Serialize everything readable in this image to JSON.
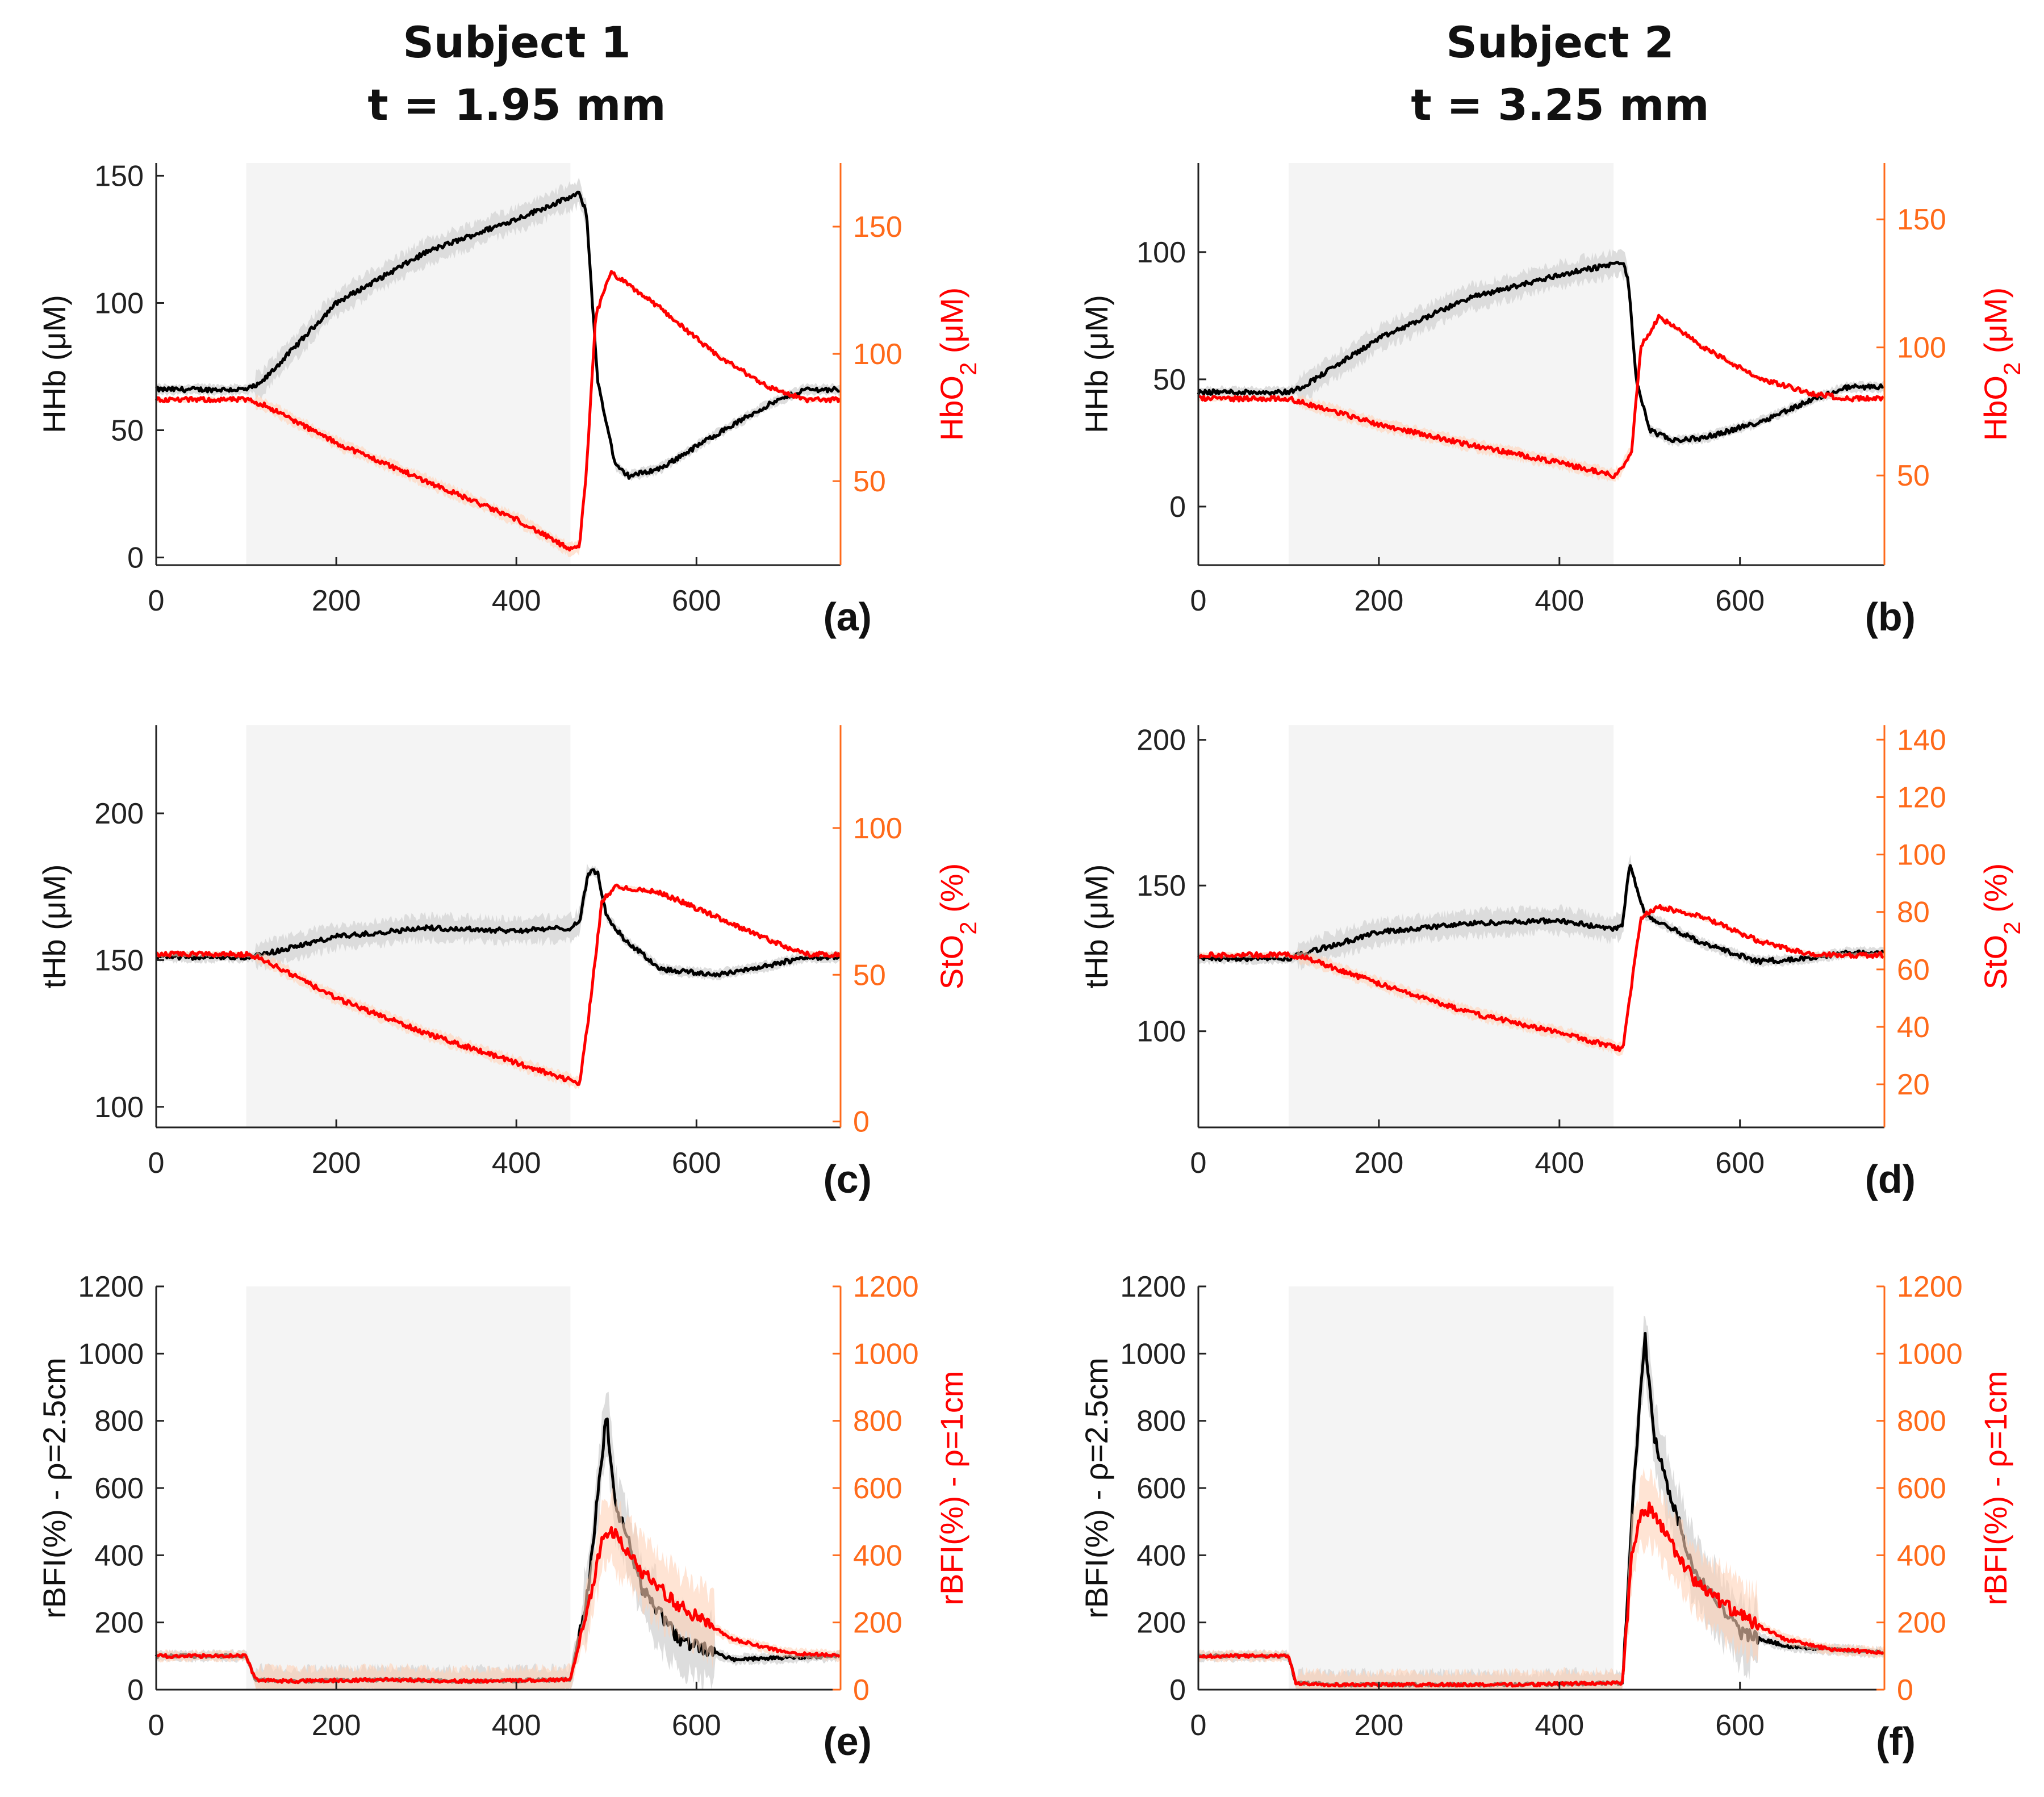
{
  "columns": [
    {
      "subject": "Subject 1",
      "thickness": "t = 1.95 mm"
    },
    {
      "subject": "Subject 2",
      "thickness": "t = 3.25 mm"
    }
  ],
  "colors": {
    "left_series": "#000000",
    "right_series": "#ff0000",
    "right_axis": "#ff6a1a",
    "band": "#d9d9d9",
    "occlusion_shade": "#f4f4f4"
  },
  "chart_data": [
    {
      "panel": "(a)",
      "type": "line",
      "subject": "Subject 1",
      "xlim": [
        0,
        760
      ],
      "xticks": [
        0,
        200,
        400,
        600
      ],
      "ylabel_left": "HHb (μM)",
      "ylabel_right": "HbO₂ (μM)",
      "ylim_left": [
        -3,
        155
      ],
      "yticks_left": [
        0,
        50,
        100,
        150
      ],
      "ylim_right": [
        17,
        175
      ],
      "yticks_right": [
        50,
        100,
        150
      ],
      "occlusion": [
        100,
        460
      ],
      "series": [
        {
          "name": "HHb",
          "axis": "left",
          "x": [
            0,
            100,
            115,
            200,
            300,
            400,
            470,
            478,
            490,
            510,
            525,
            560,
            620,
            680,
            720,
            760
          ],
          "y": [
            66,
            66,
            68,
            100,
            120,
            133,
            143,
            135,
            70,
            36,
            32,
            35,
            48,
            60,
            66,
            66
          ]
        },
        {
          "name": "HbO₂",
          "axis": "right",
          "x": [
            0,
            100,
            120,
            200,
            300,
            400,
            460,
            470,
            478,
            488,
            505,
            560,
            620,
            680,
            720,
            760
          ],
          "y": [
            82,
            82,
            80,
            65,
            50,
            35,
            23,
            24,
            55,
            115,
            132,
            118,
            100,
            87,
            82,
            82
          ]
        }
      ]
    },
    {
      "panel": "(b)",
      "type": "line",
      "subject": "Subject 2",
      "xlim": [
        0,
        760
      ],
      "xticks": [
        0,
        200,
        400,
        600
      ],
      "ylabel_left": "HHb (μM)",
      "ylabel_right": "HbO₂ (μM)",
      "ylim_left": [
        -23,
        135
      ],
      "yticks_left": [
        0,
        50,
        100
      ],
      "ylim_right": [
        15,
        172
      ],
      "yticks_right": [
        50,
        100,
        150
      ],
      "occlusion": [
        100,
        460
      ],
      "series": [
        {
          "name": "HHb",
          "axis": "left",
          "x": [
            0,
            100,
            115,
            200,
            300,
            400,
            470,
            476,
            485,
            500,
            525,
            560,
            620,
            680,
            720,
            760
          ],
          "y": [
            45,
            45,
            47,
            66,
            82,
            91,
            96,
            90,
            50,
            30,
            26,
            27,
            33,
            42,
            47,
            47
          ]
        },
        {
          "name": "HbO₂",
          "axis": "right",
          "x": [
            0,
            100,
            120,
            200,
            300,
            400,
            460,
            468,
            480,
            490,
            510,
            560,
            620,
            680,
            720,
            760
          ],
          "y": [
            80,
            80,
            78,
            70,
            62,
            55,
            50,
            52,
            60,
            100,
            112,
            100,
            88,
            82,
            80,
            80
          ]
        }
      ]
    },
    {
      "panel": "(c)",
      "type": "line",
      "subject": "Subject 1",
      "xlim": [
        0,
        760
      ],
      "xticks": [
        0,
        200,
        400,
        600
      ],
      "ylabel_left": "tHb (μM)",
      "ylabel_right": "StO₂ (%)",
      "ylim_left": [
        93,
        230
      ],
      "yticks_left": [
        100,
        150,
        200
      ],
      "ylim_right": [
        -2,
        135
      ],
      "yticks_right": [
        0,
        50,
        100
      ],
      "occlusion": [
        100,
        460
      ],
      "series": [
        {
          "name": "tHb",
          "axis": "left",
          "x": [
            0,
            100,
            120,
            200,
            300,
            400,
            460,
            470,
            480,
            490,
            500,
            520,
            560,
            620,
            680,
            720,
            760
          ],
          "y": [
            151,
            151,
            152,
            158,
            161,
            160,
            161,
            163,
            180,
            180,
            165,
            157,
            147,
            145,
            148,
            151,
            151
          ]
        },
        {
          "name": "StO₂",
          "axis": "right",
          "x": [
            0,
            100,
            120,
            200,
            300,
            400,
            460,
            470,
            480,
            495,
            510,
            560,
            620,
            680,
            720,
            760
          ],
          "y": [
            57,
            57,
            55,
            42,
            30,
            20,
            14,
            13,
            35,
            75,
            80,
            78,
            70,
            62,
            57,
            57
          ]
        }
      ]
    },
    {
      "panel": "(d)",
      "type": "line",
      "subject": "Subject 2",
      "xlim": [
        0,
        760
      ],
      "xticks": [
        0,
        200,
        400,
        600
      ],
      "ylabel_left": "tHb (μM)",
      "ylabel_right": "StO₂ (%)",
      "ylim_left": [
        67,
        205
      ],
      "yticks_left": [
        100,
        150,
        200
      ],
      "ylim_right": [
        5,
        145
      ],
      "yticks_right": [
        20,
        40,
        60,
        80,
        100,
        120,
        140
      ],
      "occlusion": [
        100,
        460
      ],
      "series": [
        {
          "name": "tHb",
          "axis": "left",
          "x": [
            0,
            100,
            120,
            200,
            300,
            400,
            460,
            470,
            478,
            485,
            495,
            520,
            560,
            620,
            680,
            720,
            760
          ],
          "y": [
            125,
            125,
            127,
            134,
            137,
            138,
            135,
            137,
            158,
            150,
            140,
            136,
            130,
            124,
            125,
            127,
            127
          ]
        },
        {
          "name": "StO₂",
          "axis": "right",
          "x": [
            0,
            100,
            120,
            200,
            300,
            400,
            460,
            470,
            478,
            490,
            510,
            560,
            620,
            680,
            720,
            760
          ],
          "y": [
            65,
            65,
            64,
            55,
            45,
            38,
            33,
            32,
            50,
            78,
            82,
            78,
            70,
            65,
            65,
            65
          ]
        }
      ]
    },
    {
      "panel": "(e)",
      "type": "line",
      "subject": "Subject 1",
      "xlim": [
        0,
        760
      ],
      "xticks": [
        0,
        200,
        400,
        600
      ],
      "ylabel_left": "rBFI(%) - ρ=2.5cm",
      "ylabel_right": "rBFI(%) - ρ=1cm",
      "ylim_left": [
        0,
        1200
      ],
      "yticks_left": [
        0,
        200,
        400,
        600,
        800,
        1000,
        1200
      ],
      "ylim_right": [
        0,
        1200
      ],
      "yticks_right": [
        0,
        200,
        400,
        600,
        800,
        1000,
        1200
      ],
      "occlusion": [
        100,
        460
      ],
      "series": [
        {
          "name": "rBFI ρ=2.5cm",
          "axis": "left",
          "x": [
            0,
            100,
            110,
            150,
            250,
            350,
            460,
            480,
            495,
            500,
            510,
            520,
            540,
            580,
            640,
            700,
            760
          ],
          "y": [
            100,
            100,
            30,
            25,
            30,
            25,
            30,
            300,
            700,
            820,
            550,
            480,
            300,
            150,
            90,
            95,
            100
          ]
        },
        {
          "name": "rBFI ρ=1cm",
          "axis": "right",
          "x": [
            0,
            100,
            110,
            150,
            250,
            350,
            460,
            480,
            495,
            505,
            520,
            540,
            580,
            640,
            700,
            760
          ],
          "y": [
            100,
            100,
            30,
            25,
            30,
            25,
            30,
            250,
            450,
            480,
            420,
            350,
            250,
            150,
            110,
            100
          ]
        }
      ]
    },
    {
      "panel": "(f)",
      "type": "line",
      "subject": "Subject 2",
      "xlim": [
        0,
        760
      ],
      "xticks": [
        0,
        200,
        400,
        600
      ],
      "ylabel_left": "rBFI(%) - ρ=2.5cm",
      "ylabel_right": "rBFI(%) - ρ=1cm",
      "ylim_left": [
        0,
        1200
      ],
      "yticks_left": [
        0,
        200,
        400,
        600,
        800,
        1000,
        1200
      ],
      "ylim_right": [
        0,
        1200
      ],
      "yticks_right": [
        0,
        200,
        400,
        600,
        800,
        1000,
        1200
      ],
      "occlusion": [
        100,
        460
      ],
      "series": [
        {
          "name": "rBFI ρ=2.5cm",
          "axis": "left",
          "x": [
            0,
            100,
            108,
            150,
            250,
            350,
            470,
            480,
            490,
            495,
            505,
            520,
            550,
            600,
            650,
            700,
            760
          ],
          "y": [
            100,
            100,
            20,
            15,
            15,
            15,
            20,
            500,
            900,
            1050,
            750,
            600,
            350,
            170,
            130,
            120,
            110
          ]
        },
        {
          "name": "rBFI ρ=1cm",
          "axis": "right",
          "x": [
            0,
            100,
            108,
            150,
            250,
            350,
            470,
            480,
            490,
            500,
            520,
            550,
            600,
            650,
            700,
            760
          ],
          "y": [
            100,
            100,
            20,
            15,
            15,
            15,
            20,
            400,
            520,
            540,
            450,
            320,
            220,
            150,
            120,
            110
          ]
        }
      ]
    }
  ]
}
